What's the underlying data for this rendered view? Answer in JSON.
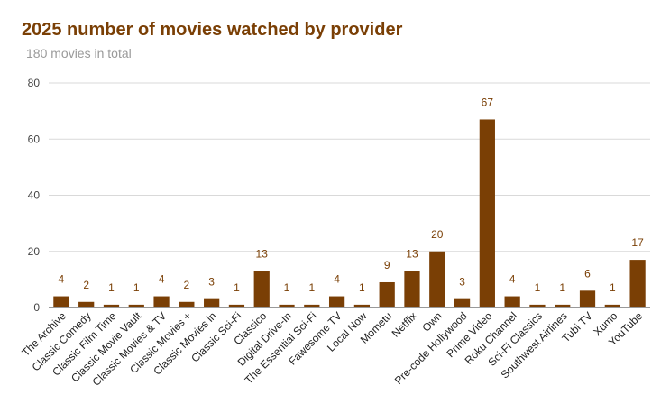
{
  "chart_data": {
    "type": "bar",
    "title": "2025 number of movies watched by provider",
    "subtitle": "180 movies in total",
    "xlabel": "",
    "ylabel": "",
    "ylim": [
      0,
      80
    ],
    "yticks": [
      0,
      20,
      40,
      60,
      80
    ],
    "grid": true,
    "legend": "none",
    "bar_color": "#7a3f05",
    "categories": [
      "The Archive",
      "Classic Comedy",
      "Classic Film Time",
      "Classic Movie Vault",
      "Classic Movies & TV",
      "Classic Movies +",
      "Classic Movies in",
      "Classic Sci-Fi",
      "Classico",
      "Digital Drive-In",
      "The Essential Sci-Fi",
      "Fawesome TV",
      "Local Now",
      "Mometu",
      "Netflix",
      "Own",
      "Pre-code Hollywood",
      "Prime Video",
      "Roku Channel",
      "Sci-Fi Classics",
      "Southwest Airlines",
      "Tubi TV",
      "Xumo",
      "YouTube"
    ],
    "values": [
      4,
      2,
      1,
      1,
      4,
      2,
      3,
      1,
      13,
      1,
      1,
      4,
      1,
      9,
      13,
      20,
      3,
      67,
      4,
      1,
      1,
      6,
      1,
      17
    ]
  }
}
